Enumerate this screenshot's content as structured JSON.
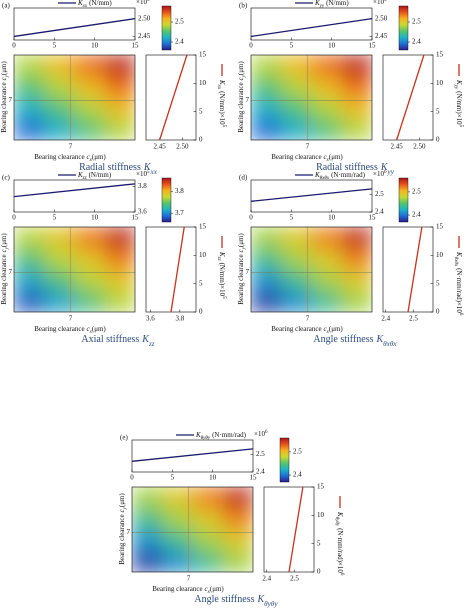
{
  "chart_data": [
    {
      "type": "heatmap",
      "label": "(a)",
      "caption": "Radial stiffness",
      "symbol": "K",
      "subscript": "xx",
      "unit": "(N/mm)",
      "scale_base": "×10",
      "scale_exponent": "5",
      "line_color": "#1a1a6e",
      "side_color": "#c8321e",
      "colormap": [
        "#2a1e8c",
        "#1f6fd6",
        "#1fb5c4",
        "#58c46a",
        "#c8d932",
        "#f5b41f",
        "#e8531c",
        "#a8141a"
      ],
      "top": {
        "x": [
          0,
          15
        ],
        "values": [
          2.45,
          2.5
        ],
        "xlim": [
          0,
          15
        ],
        "xticks": [
          0,
          5,
          10,
          15
        ],
        "ylim": [
          2.44,
          2.53
        ],
        "yticks": [
          2.45,
          {
            "value": 2.5,
            "label": "2.50"
          }
        ]
      },
      "heatmap": {
        "xlabel": "Bearing clearance",
        "xvar": "c",
        "xsub": "x",
        "xunit": "(μm)",
        "ylabel": "Bearing clearance",
        "yvar": "c",
        "ysub": "y",
        "yunit": "(μm)",
        "xlim": [
          0,
          15
        ],
        "ylim": [
          0,
          15
        ],
        "xticks": [
          7
        ],
        "yticks": [
          7
        ],
        "z": [
          [
            2.39,
            2.42,
            2.45,
            2.48
          ],
          [
            2.42,
            2.45,
            2.48,
            2.51
          ],
          [
            2.45,
            2.48,
            2.51,
            2.54
          ],
          [
            2.48,
            2.51,
            2.54,
            2.57
          ]
        ],
        "zlim": [
          2.36,
          2.58
        ],
        "zticks": [
          2.4,
          2.5
        ]
      },
      "side": {
        "x": [
          2.45,
          2.51
        ],
        "values": [
          0,
          15
        ],
        "xlim": [
          2.42,
          2.53
        ],
        "xticks": [
          2.45,
          {
            "value": 2.5,
            "label": "2.50"
          }
        ],
        "ylim": [
          0,
          15
        ],
        "yticks": [
          0,
          5,
          10,
          15
        ]
      }
    },
    {
      "type": "heatmap",
      "label": "(b)",
      "caption": "Radial stiffness",
      "symbol": "K",
      "subscript": "yy",
      "unit": "(N/mm)",
      "scale_base": "×10",
      "scale_exponent": "5",
      "line_color": "#1a1a6e",
      "side_color": "#c8321e",
      "colormap": [
        "#2a1e8c",
        "#1f6fd6",
        "#1fb5c4",
        "#58c46a",
        "#c8d932",
        "#f5b41f",
        "#e8531c",
        "#a8141a"
      ],
      "top": {
        "x": [
          0,
          15
        ],
        "values": [
          2.45,
          2.5
        ],
        "xlim": [
          0,
          15
        ],
        "xticks": [
          0,
          5,
          10,
          15
        ],
        "ylim": [
          2.44,
          2.53
        ],
        "yticks": [
          2.45,
          {
            "value": 2.5,
            "label": "2.50"
          }
        ]
      },
      "heatmap": {
        "xlabel": "Bearing clearance",
        "xvar": "c",
        "xsub": "x",
        "xunit": "(μm)",
        "ylabel": "Bearing clearance",
        "yvar": "c",
        "ysub": "y",
        "yunit": "(μm)",
        "xlim": [
          0,
          15
        ],
        "ylim": [
          0,
          15
        ],
        "xticks": [
          7
        ],
        "yticks": [
          7
        ],
        "z": [
          [
            2.39,
            2.42,
            2.45,
            2.48
          ],
          [
            2.42,
            2.45,
            2.48,
            2.51
          ],
          [
            2.45,
            2.48,
            2.51,
            2.54
          ],
          [
            2.48,
            2.51,
            2.54,
            2.57
          ]
        ],
        "zlim": [
          2.36,
          2.58
        ],
        "zticks": [
          2.4,
          2.5
        ]
      },
      "side": {
        "x": [
          2.45,
          2.51
        ],
        "values": [
          0,
          15
        ],
        "xlim": [
          2.42,
          2.53
        ],
        "xticks": [
          2.45,
          {
            "value": 2.5,
            "label": "2.50"
          }
        ],
        "ylim": [
          0,
          15
        ],
        "yticks": [
          0,
          5,
          10,
          15
        ]
      }
    },
    {
      "type": "heatmap",
      "label": "(c)",
      "caption": "Axial stiffness",
      "symbol": "K",
      "subscript": "zz",
      "unit": "(N/mm)",
      "scale_base": "×10",
      "scale_exponent": "5",
      "line_color": "#1a1a6e",
      "side_color": "#c8321e",
      "colormap": [
        "#2a1e8c",
        "#1f6fd6",
        "#1fb5c4",
        "#58c46a",
        "#c8d932",
        "#f5b41f",
        "#e8531c",
        "#a8141a"
      ],
      "top": {
        "x": [
          0,
          15
        ],
        "values": [
          3.72,
          3.82
        ],
        "xlim": [
          0,
          15
        ],
        "xticks": [
          0,
          5,
          10,
          15
        ],
        "ylim": [
          3.6,
          3.85
        ],
        "yticks": [
          3.6,
          3.8
        ]
      },
      "heatmap": {
        "xlabel": "Bearing clearance",
        "xvar": "c",
        "xsub": "x",
        "xunit": "(μm)",
        "ylabel": "Bearing clearance",
        "yvar": "c",
        "ysub": "y",
        "yunit": "(μm)",
        "xlim": [
          0,
          15
        ],
        "ylim": [
          0,
          15
        ],
        "xticks": [
          7
        ],
        "yticks": [
          7
        ],
        "z": [
          [
            3.68,
            3.71,
            3.74,
            3.77
          ],
          [
            3.71,
            3.74,
            3.77,
            3.79
          ],
          [
            3.74,
            3.77,
            3.79,
            3.82
          ],
          [
            3.77,
            3.79,
            3.82,
            3.85
          ]
        ],
        "zlim": [
          3.66,
          3.86
        ],
        "zticks": [
          3.7,
          3.8
        ]
      },
      "side": {
        "x": [
          3.74,
          3.83
        ],
        "values": [
          0,
          15
        ],
        "xlim": [
          3.57,
          3.91
        ],
        "xticks": [
          3.6,
          3.8
        ],
        "ylim": [
          0,
          15
        ],
        "yticks": [
          0,
          5,
          10,
          15
        ]
      }
    },
    {
      "type": "heatmap",
      "label": "(d)",
      "caption": "Angle stiffness",
      "symbol": "K",
      "subscript": "θxθx",
      "unit": "(N·mm/rad)",
      "scale_base": "×10",
      "scale_exponent": "6",
      "line_color": "#1a1a6e",
      "side_color": "#c8321e",
      "colormap": [
        "#2a1e8c",
        "#1f6fd6",
        "#1fb5c4",
        "#58c46a",
        "#c8d932",
        "#f5b41f",
        "#e8531c",
        "#a8141a"
      ],
      "top": {
        "x": [
          0,
          15
        ],
        "values": [
          2.46,
          2.53
        ],
        "xlim": [
          0,
          15
        ],
        "xticks": [
          0,
          5,
          10,
          15
        ],
        "ylim": [
          2.4,
          2.58
        ],
        "yticks": [
          2.4,
          2.5
        ]
      },
      "heatmap": {
        "xlabel": "Bearing clearance",
        "xvar": "c",
        "xsub": "x",
        "xunit": "(μm)",
        "ylabel": "Bearing clearance",
        "yvar": "c",
        "ysub": "y",
        "yunit": "(μm)",
        "xlim": [
          0,
          15
        ],
        "ylim": [
          0,
          15
        ],
        "xticks": [
          7
        ],
        "yticks": [
          7
        ],
        "z": [
          [
            2.38,
            2.41,
            2.44,
            2.47
          ],
          [
            2.41,
            2.44,
            2.47,
            2.49
          ],
          [
            2.44,
            2.47,
            2.49,
            2.52
          ],
          [
            2.47,
            2.49,
            2.52,
            2.55
          ]
        ],
        "zlim": [
          2.37,
          2.56
        ],
        "zticks": [
          2.4,
          2.5
        ]
      },
      "side": {
        "x": [
          2.48,
          2.53
        ],
        "values": [
          0,
          15
        ],
        "xlim": [
          2.39,
          2.57
        ],
        "xticks": [
          2.4,
          2.5
        ],
        "ylim": [
          0,
          15
        ],
        "yticks": [
          0,
          5,
          10,
          15
        ]
      }
    },
    {
      "type": "heatmap",
      "label": "(e)",
      "caption": "Angle stiffness",
      "symbol": "K",
      "subscript": "θyθy",
      "unit": "(N·mm/rad)",
      "scale_base": "×10",
      "scale_exponent": "6",
      "line_color": "#1a1a6e",
      "side_color": "#c8321e",
      "colormap": [
        "#2a1e8c",
        "#1f6fd6",
        "#1fb5c4",
        "#58c46a",
        "#c8d932",
        "#f5b41f",
        "#e8531c",
        "#a8141a"
      ],
      "top": {
        "x": [
          0,
          15
        ],
        "values": [
          2.46,
          2.53
        ],
        "xlim": [
          0,
          15
        ],
        "xticks": [
          0,
          5,
          10,
          15
        ],
        "ylim": [
          2.4,
          2.58
        ],
        "yticks": [
          2.4,
          2.5
        ]
      },
      "heatmap": {
        "xlabel": "Bearing clearance",
        "xvar": "c",
        "xsub": "x",
        "xunit": "(μm)",
        "ylabel": "Bearing clearance",
        "yvar": "c",
        "ysub": "y",
        "yunit": "(μm)",
        "xlim": [
          0,
          15
        ],
        "ylim": [
          0,
          15
        ],
        "xticks": [
          7
        ],
        "yticks": [
          7
        ],
        "z": [
          [
            2.38,
            2.41,
            2.44,
            2.47
          ],
          [
            2.41,
            2.44,
            2.47,
            2.49
          ],
          [
            2.44,
            2.47,
            2.49,
            2.52
          ],
          [
            2.47,
            2.49,
            2.52,
            2.55
          ]
        ],
        "zlim": [
          2.37,
          2.56
        ],
        "zticks": [
          2.4,
          2.5
        ]
      },
      "side": {
        "x": [
          2.48,
          2.53
        ],
        "values": [
          0,
          15
        ],
        "xlim": [
          2.39,
          2.57
        ],
        "xticks": [
          2.4,
          2.5
        ],
        "ylim": [
          0,
          15
        ],
        "yticks": [
          0,
          5,
          10,
          15
        ]
      }
    }
  ]
}
